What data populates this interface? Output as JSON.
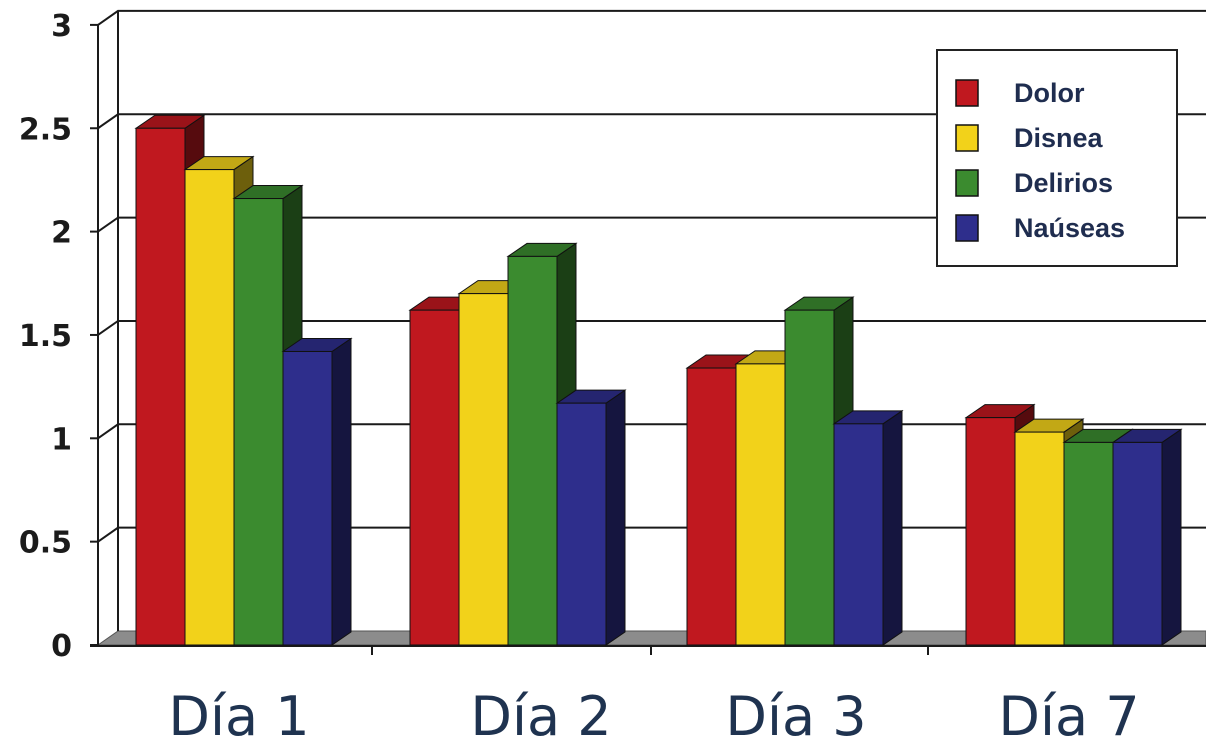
{
  "chart_data": {
    "type": "bar",
    "categories": [
      "Día 1",
      "Día 2",
      "Día 3",
      "Día 7"
    ],
    "series": [
      {
        "name": "Dolor",
        "color": "#c0181f",
        "values": [
          2.5,
          1.62,
          1.34,
          1.1
        ]
      },
      {
        "name": "Disnea",
        "color": "#f2d21a",
        "values": [
          2.3,
          1.7,
          1.36,
          1.03
        ]
      },
      {
        "name": "Delirios",
        "color": "#3b8b2f",
        "values": [
          2.16,
          1.88,
          1.62,
          0.98
        ]
      },
      {
        "name": "Naúseas",
        "color": "#2e2e8c",
        "values": [
          1.42,
          1.17,
          1.07,
          0.98
        ]
      }
    ],
    "y_ticks": [
      "0",
      "0.5",
      "1",
      "1.5",
      "2",
      "2.5",
      "3"
    ],
    "ylim": [
      0,
      3
    ],
    "grid": true,
    "legend_position": "top-right",
    "style": "3d-clustered-bar"
  }
}
